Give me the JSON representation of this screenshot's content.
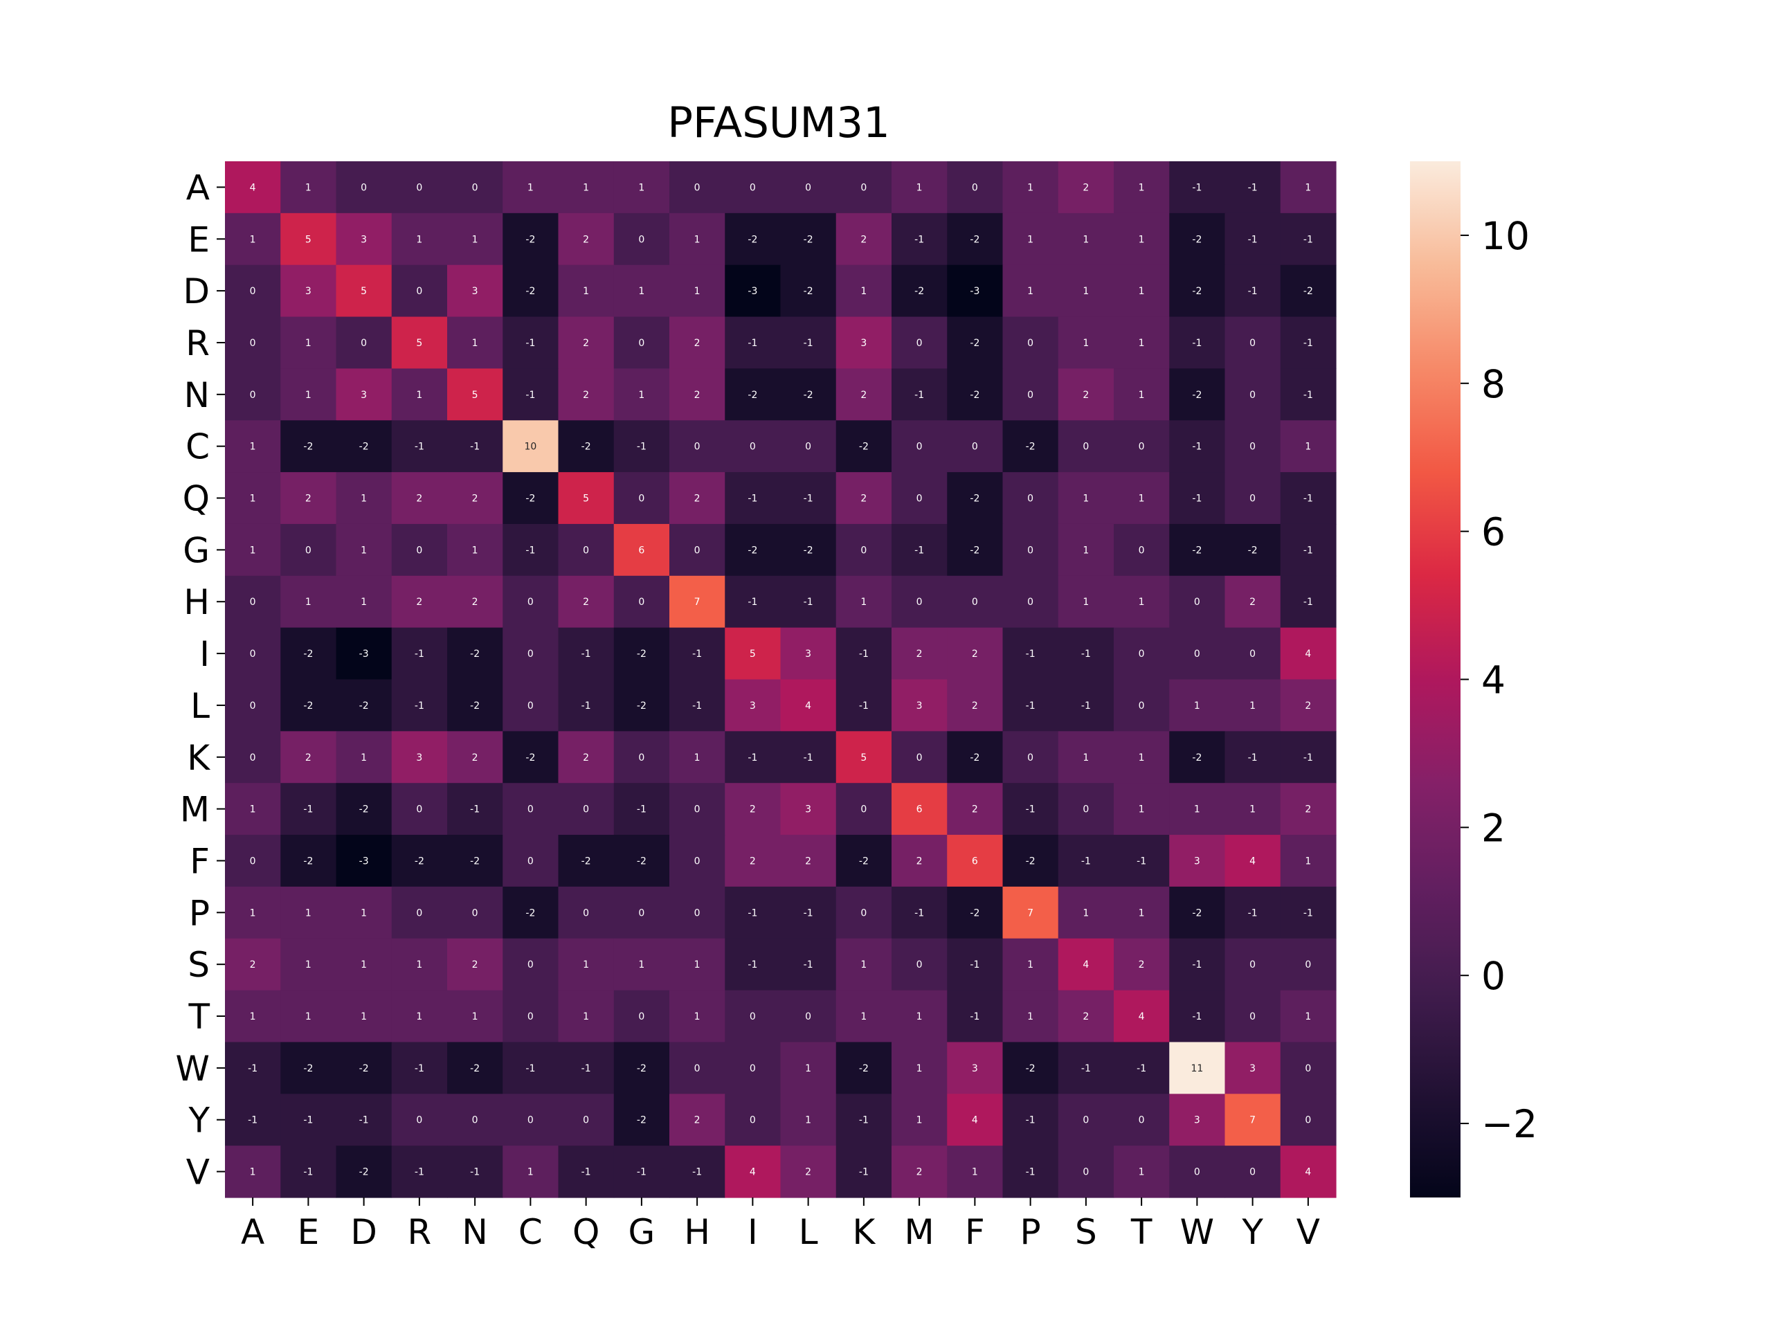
{
  "chart_data": {
    "type": "heatmap",
    "title": "PFASUM31",
    "xlabel": "",
    "ylabel": "",
    "x_labels": [
      "A",
      "E",
      "D",
      "R",
      "N",
      "C",
      "Q",
      "G",
      "H",
      "I",
      "L",
      "K",
      "M",
      "F",
      "P",
      "S",
      "T",
      "W",
      "Y",
      "V"
    ],
    "y_labels": [
      "A",
      "E",
      "D",
      "R",
      "N",
      "C",
      "Q",
      "G",
      "H",
      "I",
      "L",
      "K",
      "M",
      "F",
      "P",
      "S",
      "T",
      "W",
      "Y",
      "V"
    ],
    "values": [
      [
        4,
        1,
        0,
        0,
        0,
        1,
        1,
        1,
        0,
        0,
        0,
        0,
        1,
        0,
        1,
        2,
        1,
        -1,
        -1,
        1
      ],
      [
        1,
        5,
        3,
        1,
        1,
        -2,
        2,
        0,
        1,
        -2,
        -2,
        2,
        -1,
        -2,
        1,
        1,
        1,
        -2,
        -1,
        -1
      ],
      [
        0,
        3,
        5,
        0,
        3,
        -2,
        1,
        1,
        1,
        -3,
        -2,
        1,
        -2,
        -3,
        1,
        1,
        1,
        -2,
        -1,
        -2
      ],
      [
        0,
        1,
        0,
        5,
        1,
        -1,
        2,
        0,
        2,
        -1,
        -1,
        3,
        0,
        -2,
        0,
        1,
        1,
        -1,
        0,
        -1
      ],
      [
        0,
        1,
        3,
        1,
        5,
        -1,
        2,
        1,
        2,
        -2,
        -2,
        2,
        -1,
        -2,
        0,
        2,
        1,
        -2,
        0,
        -1
      ],
      [
        1,
        -2,
        -2,
        -1,
        -1,
        10,
        -2,
        -1,
        0,
        0,
        0,
        -2,
        0,
        0,
        -2,
        0,
        0,
        -1,
        0,
        1
      ],
      [
        1,
        2,
        1,
        2,
        2,
        -2,
        5,
        0,
        2,
        -1,
        -1,
        2,
        0,
        -2,
        0,
        1,
        1,
        -1,
        0,
        -1
      ],
      [
        1,
        0,
        1,
        0,
        1,
        -1,
        0,
        6,
        0,
        -2,
        -2,
        0,
        -1,
        -2,
        0,
        1,
        0,
        -2,
        -2,
        -1
      ],
      [
        0,
        1,
        1,
        2,
        2,
        0,
        2,
        0,
        7,
        -1,
        -1,
        1,
        0,
        0,
        0,
        1,
        1,
        0,
        2,
        -1
      ],
      [
        0,
        -2,
        -3,
        -1,
        -2,
        0,
        -1,
        -2,
        -1,
        5,
        3,
        -1,
        2,
        2,
        -1,
        -1,
        0,
        0,
        0,
        4
      ],
      [
        0,
        -2,
        -2,
        -1,
        -2,
        0,
        -1,
        -2,
        -1,
        3,
        4,
        -1,
        3,
        2,
        -1,
        -1,
        0,
        1,
        1,
        2
      ],
      [
        0,
        2,
        1,
        3,
        2,
        -2,
        2,
        0,
        1,
        -1,
        -1,
        5,
        0,
        -2,
        0,
        1,
        1,
        -2,
        -1,
        -1
      ],
      [
        1,
        -1,
        -2,
        0,
        -1,
        0,
        0,
        -1,
        0,
        2,
        3,
        0,
        6,
        2,
        -1,
        0,
        1,
        1,
        1,
        2
      ],
      [
        0,
        -2,
        -3,
        -2,
        -2,
        0,
        -2,
        -2,
        0,
        2,
        2,
        -2,
        2,
        6,
        -2,
        -1,
        -1,
        3,
        4,
        1
      ],
      [
        1,
        1,
        1,
        0,
        0,
        -2,
        0,
        0,
        0,
        -1,
        -1,
        0,
        -1,
        -2,
        7,
        1,
        1,
        -2,
        -1,
        -1
      ],
      [
        2,
        1,
        1,
        1,
        2,
        0,
        1,
        1,
        1,
        -1,
        -1,
        1,
        0,
        -1,
        1,
        4,
        2,
        -1,
        0,
        0
      ],
      [
        1,
        1,
        1,
        1,
        1,
        0,
        1,
        0,
        1,
        0,
        0,
        1,
        1,
        -1,
        1,
        2,
        4,
        -1,
        0,
        1
      ],
      [
        -1,
        -2,
        -2,
        -1,
        -2,
        -1,
        -1,
        -2,
        0,
        0,
        1,
        -2,
        1,
        3,
        -2,
        -1,
        -1,
        11,
        3,
        0
      ],
      [
        -1,
        -1,
        -1,
        0,
        0,
        0,
        0,
        -2,
        2,
        0,
        1,
        -1,
        1,
        4,
        -1,
        0,
        0,
        3,
        7,
        0
      ],
      [
        1,
        -1,
        -2,
        -1,
        -1,
        1,
        -1,
        -1,
        -1,
        4,
        2,
        -1,
        2,
        1,
        -1,
        0,
        1,
        0,
        0,
        4
      ]
    ],
    "color_range": [
      -3,
      11
    ],
    "colormap": "rocket",
    "colorbar_ticks": [
      -2,
      0,
      2,
      4,
      6,
      8,
      10
    ],
    "colorbar_tick_labels": [
      "−2",
      "0",
      "2",
      "4",
      "6",
      "8",
      "10"
    ]
  }
}
